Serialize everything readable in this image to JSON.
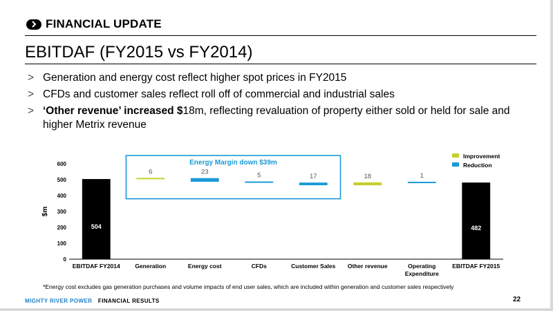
{
  "header": {
    "text": "FINANCIAL UPDATE"
  },
  "title": "EBITDAF (FY2015 vs FY2014)",
  "bullets": [
    {
      "marker": ">",
      "bold": "",
      "text": "Generation and energy cost reflect higher spot prices in FY2015"
    },
    {
      "marker": ">",
      "bold": "",
      "text": "CFDs and customer sales reflect roll off of commercial and industrial sales"
    },
    {
      "marker": ">",
      "bold": "‘Other revenue’ increased $",
      "text": "18m, reflecting revaluation of property either sold or held for sale and higher Metrix revenue"
    }
  ],
  "chart_data": {
    "type": "bar",
    "subtype": "waterfall",
    "ylabel": "$m",
    "ylim": [
      0,
      600
    ],
    "yticks": [
      0,
      100,
      200,
      300,
      400,
      500,
      600
    ],
    "categories": [
      "EBITDAF FY2014",
      "Generation",
      "Energy cost",
      "CFDs",
      "Customer Sales",
      "Other revenue",
      "Operating Expenditure",
      "EBITDAF FY2015"
    ],
    "steps": [
      {
        "category": "EBITDAF FY2014",
        "kind": "total",
        "value": 504,
        "label": "504"
      },
      {
        "category": "Generation",
        "kind": "improvement",
        "value": 6,
        "label": "6"
      },
      {
        "category": "Energy cost",
        "kind": "reduction",
        "value": 23,
        "label": "23"
      },
      {
        "category": "CFDs",
        "kind": "reduction",
        "value": 5,
        "label": "5"
      },
      {
        "category": "Customer Sales",
        "kind": "reduction",
        "value": 17,
        "label": "17"
      },
      {
        "category": "Other revenue",
        "kind": "improvement",
        "value": 18,
        "label": "18"
      },
      {
        "category": "Operating Expenditure",
        "kind": "reduction",
        "value": 1,
        "label": "1"
      },
      {
        "category": "EBITDAF FY2015",
        "kind": "total",
        "value": 482,
        "label": "482"
      }
    ],
    "legend": [
      {
        "name": "Improvement",
        "color": "#c4cf2a"
      },
      {
        "name": "Reduction",
        "color": "#1a9ad6"
      }
    ],
    "legend_position": "top-right",
    "annotation": "Energy Margin down $39m",
    "annotation_color": "#1a9ad6",
    "total_color": "#000000",
    "grid": false
  },
  "footnote": "*Energy cost excludes gas generation purchases and volume impacts of end user sales, which are included within generation and customer sales respectively",
  "footer": {
    "brand": "MIGHTY RIVER POWER",
    "section": "FINANCIAL RESULTS"
  },
  "page_number": "22"
}
